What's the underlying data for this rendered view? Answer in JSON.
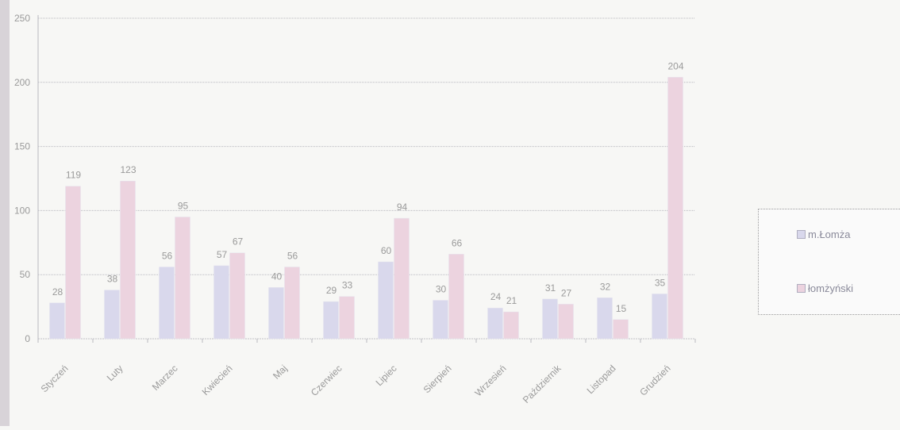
{
  "chart_data": {
    "type": "bar",
    "categories": [
      "Styczeń",
      "Luty",
      "Marzec",
      "Kwiecień",
      "Maj",
      "Czerwiec",
      "Lipiec",
      "Sierpień",
      "Wrzesień",
      "Październik",
      "Listopad",
      "Grudzień"
    ],
    "series": [
      {
        "name": "m.Łomża",
        "values": [
          28,
          38,
          56,
          57,
          40,
          29,
          60,
          30,
          24,
          31,
          32,
          35
        ],
        "color": "#d9d8ec"
      },
      {
        "name": "łomżyński",
        "values": [
          119,
          123,
          95,
          67,
          56,
          33,
          94,
          66,
          21,
          27,
          15,
          204
        ],
        "color": "#ecd3df"
      }
    ],
    "ylim": [
      0,
      250
    ],
    "yticks": [
      0,
      50,
      100,
      150,
      200,
      250
    ],
    "grid": true,
    "legend_position": "right",
    "title": "",
    "xlabel": "",
    "ylabel": ""
  },
  "legend": {
    "items": [
      {
        "label": "m.Łomża",
        "color": "#d9d8ec"
      },
      {
        "label": "łomżyński",
        "color": "#ecd3df"
      }
    ]
  }
}
